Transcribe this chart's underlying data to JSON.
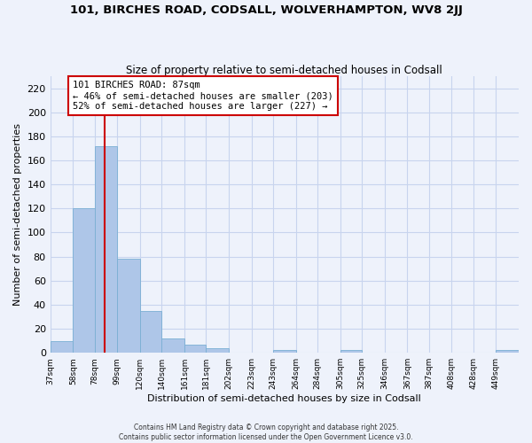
{
  "title": "101, BIRCHES ROAD, CODSALL, WOLVERHAMPTON, WV8 2JJ",
  "subtitle": "Size of property relative to semi-detached houses in Codsall",
  "xlabel": "Distribution of semi-detached houses by size in Codsall",
  "ylabel": "Number of semi-detached properties",
  "bin_labels": [
    "37sqm",
    "58sqm",
    "78sqm",
    "99sqm",
    "120sqm",
    "140sqm",
    "161sqm",
    "181sqm",
    "202sqm",
    "223sqm",
    "243sqm",
    "264sqm",
    "284sqm",
    "305sqm",
    "325sqm",
    "346sqm",
    "367sqm",
    "387sqm",
    "408sqm",
    "428sqm",
    "449sqm"
  ],
  "bin_edges": [
    37,
    58,
    78,
    99,
    120,
    140,
    161,
    181,
    202,
    223,
    243,
    264,
    284,
    305,
    325,
    346,
    367,
    387,
    408,
    428,
    449,
    470
  ],
  "counts": [
    10,
    120,
    172,
    78,
    35,
    12,
    7,
    4,
    0,
    0,
    2,
    0,
    0,
    2,
    0,
    0,
    0,
    0,
    0,
    0,
    2
  ],
  "bar_color": "#aec6e8",
  "bar_edgecolor": "#7aafd4",
  "vline_x": 87,
  "vline_color": "#cc0000",
  "annotation_title": "101 BIRCHES ROAD: 87sqm",
  "annotation_line1": "← 46% of semi-detached houses are smaller (203)",
  "annotation_line2": "52% of semi-detached houses are larger (227) →",
  "annotation_box_color": "#ffffff",
  "annotation_box_edgecolor": "#cc0000",
  "ylim": [
    0,
    230
  ],
  "yticks": [
    0,
    20,
    40,
    60,
    80,
    100,
    120,
    140,
    160,
    180,
    200,
    220
  ],
  "footer_line1": "Contains HM Land Registry data © Crown copyright and database right 2025.",
  "footer_line2": "Contains public sector information licensed under the Open Government Licence v3.0.",
  "bg_color": "#eef2fb",
  "grid_color": "#c8d4ee"
}
